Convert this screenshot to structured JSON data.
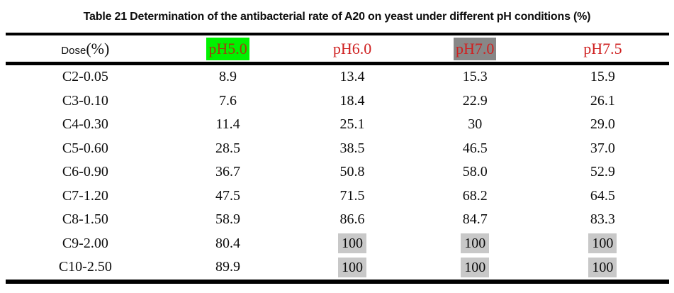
{
  "page": {
    "background": "#ffffff",
    "rule_color": "#000000"
  },
  "title": "Table 21 Determination of the antibacterial rate of A20 on yeast under different pH conditions (%)",
  "table": {
    "dose_header": {
      "label": "Dose",
      "unit": "(%)"
    },
    "ph_columns": [
      {
        "label": "pH5.0",
        "highlight": "#00f200",
        "text_color": "#a03c10"
      },
      {
        "label": "pH6.0",
        "highlight": "",
        "text_color": "#cf2121"
      },
      {
        "label": "pH7.0",
        "highlight": "#878787",
        "text_color": "#cf2121"
      },
      {
        "label": "pH7.5",
        "highlight": "",
        "text_color": "#cf2121"
      }
    ],
    "value_highlight_color": "#c8c8c8",
    "rows": [
      {
        "dose": "C2-0.05",
        "values": [
          {
            "text": "8.9",
            "highlighted": false
          },
          {
            "text": "13.4",
            "highlighted": false
          },
          {
            "text": "15.3",
            "highlighted": false
          },
          {
            "text": "15.9",
            "highlighted": false
          }
        ]
      },
      {
        "dose": "C3-0.10",
        "values": [
          {
            "text": "7.6",
            "highlighted": false
          },
          {
            "text": "18.4",
            "highlighted": false
          },
          {
            "text": "22.9",
            "highlighted": false
          },
          {
            "text": "26.1",
            "highlighted": false
          }
        ]
      },
      {
        "dose": "C4-0.30",
        "values": [
          {
            "text": "11.4",
            "highlighted": false
          },
          {
            "text": "25.1",
            "highlighted": false
          },
          {
            "text": "30",
            "highlighted": false
          },
          {
            "text": "29.0",
            "highlighted": false
          }
        ]
      },
      {
        "dose": "C5-0.60",
        "values": [
          {
            "text": "28.5",
            "highlighted": false
          },
          {
            "text": "38.5",
            "highlighted": false
          },
          {
            "text": "46.5",
            "highlighted": false
          },
          {
            "text": "37.0",
            "highlighted": false
          }
        ]
      },
      {
        "dose": "C6-0.90",
        "values": [
          {
            "text": "36.7",
            "highlighted": false
          },
          {
            "text": "50.8",
            "highlighted": false
          },
          {
            "text": "58.0",
            "highlighted": false
          },
          {
            "text": "52.9",
            "highlighted": false
          }
        ]
      },
      {
        "dose": "C7-1.20",
        "values": [
          {
            "text": "47.5",
            "highlighted": false
          },
          {
            "text": "71.5",
            "highlighted": false
          },
          {
            "text": "68.2",
            "highlighted": false
          },
          {
            "text": "64.5",
            "highlighted": false
          }
        ]
      },
      {
        "dose": "C8-1.50",
        "values": [
          {
            "text": "58.9",
            "highlighted": false
          },
          {
            "text": "86.6",
            "highlighted": false
          },
          {
            "text": "84.7",
            "highlighted": false
          },
          {
            "text": "83.3",
            "highlighted": false
          }
        ]
      },
      {
        "dose": "C9-2.00",
        "values": [
          {
            "text": "80.4",
            "highlighted": false
          },
          {
            "text": "100",
            "highlighted": true
          },
          {
            "text": "100",
            "highlighted": true
          },
          {
            "text": "100",
            "highlighted": true
          }
        ]
      },
      {
        "dose": "C10-2.50",
        "values": [
          {
            "text": "89.9",
            "highlighted": false
          },
          {
            "text": "100",
            "highlighted": true
          },
          {
            "text": "100",
            "highlighted": true
          },
          {
            "text": "100",
            "highlighted": true
          }
        ]
      }
    ]
  }
}
